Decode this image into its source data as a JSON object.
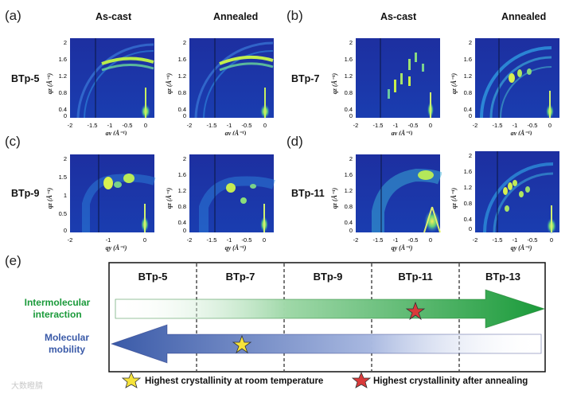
{
  "panels": {
    "a": {
      "label": "(a)",
      "sample": "BTp-5"
    },
    "b": {
      "label": "(b)",
      "sample": "BTp-7"
    },
    "c": {
      "label": "(c)",
      "sample": "BTp-9"
    },
    "d": {
      "label": "(d)",
      "sample": "BTp-11"
    },
    "e": {
      "label": "(e)"
    }
  },
  "column_titles": {
    "as_cast": "As-cast",
    "annealed": "Annealed"
  },
  "axes": {
    "qz_label": "qz (Å⁻¹)",
    "qy_label": "qy (Å⁻¹)",
    "y_ticks_a": [
      "2",
      "1.6",
      "1.2",
      "0.8",
      "0.4",
      "0"
    ],
    "y_ticks_c": [
      "2",
      "1.5",
      "1",
      "0.5",
      "0"
    ],
    "x_ticks": [
      "-2",
      "-1.5",
      "-1",
      "-0.5",
      "0"
    ],
    "x_ticks_c": [
      "-2",
      "-1",
      "0"
    ]
  },
  "scheme": {
    "columns": [
      "BTp-5",
      "BTp-7",
      "BTp-9",
      "BTp-11",
      "BTp-13"
    ],
    "arrow_top_label": "Intermolecular interaction",
    "arrow_top_line1": "Intermolecular",
    "arrow_top_line2": "interaction",
    "arrow_bottom_line1": "Molecular",
    "arrow_bottom_line2": "mobility",
    "legend_yellow": "Highest crystallinity at room temperature",
    "legend_red": "Highest crystallinity after annealing",
    "colors": {
      "green": "#1a9a3a",
      "blue": "#3a5aa8",
      "yellow_star": "#f6e33a",
      "red_star": "#d93a3a"
    }
  },
  "watermark": "大数瞪腈"
}
